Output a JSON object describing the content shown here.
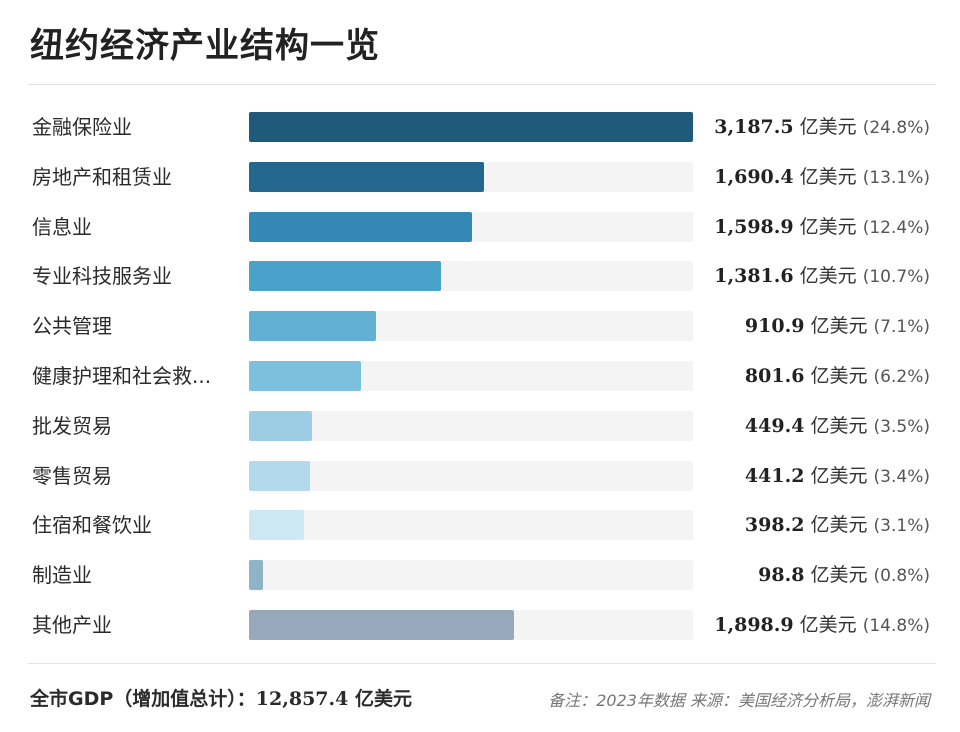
{
  "chart_data": {
    "type": "bar",
    "orientation": "horizontal",
    "title": "纽约经济产业结构一览",
    "unit": "亿美元",
    "xlim": [
      0,
      3187.5
    ],
    "grid": false,
    "categories": [
      "金融保险业",
      "房地产和租赁业",
      "信息业",
      "专业科技服务业",
      "公共管理",
      "健康护理和社会救...",
      "批发贸易",
      "零售贸易",
      "住宿和餐饮业",
      "制造业",
      "其他产业"
    ],
    "values": [
      3187.5,
      1690.4,
      1598.9,
      1381.6,
      910.9,
      801.6,
      449.4,
      441.2,
      398.2,
      98.8,
      1898.9
    ],
    "value_labels": [
      "3,187.5",
      "1,690.4",
      "1,598.9",
      "1,381.6",
      "910.9",
      "801.6",
      "449.4",
      "441.2",
      "398.2",
      "98.8",
      "1,898.9"
    ],
    "percent_labels": [
      "(24.8%)",
      "(13.1%)",
      "(12.4%)",
      "(10.7%)",
      "(7.1%)",
      "(6.2%)",
      "(3.5%)",
      "(3.4%)",
      "(3.1%)",
      "(0.8%)",
      "(14.8%)"
    ],
    "colors": [
      "#1f5a7a",
      "#23678e",
      "#3388b5",
      "#4aa1c9",
      "#62b0d4",
      "#7cc0de",
      "#9ccde4",
      "#b2daec",
      "#cde7f3",
      "#8fb3c8",
      "#97a8bd"
    ],
    "track_color": "#f4f4f4"
  },
  "footer": {
    "gdp_label": "全市GDP（增加值总计）：",
    "gdp_value": "12,857.4",
    "gdp_unit": " 亿美元",
    "note": "备注：2023年数据 来源：美国经济分析局，澎湃新闻"
  }
}
